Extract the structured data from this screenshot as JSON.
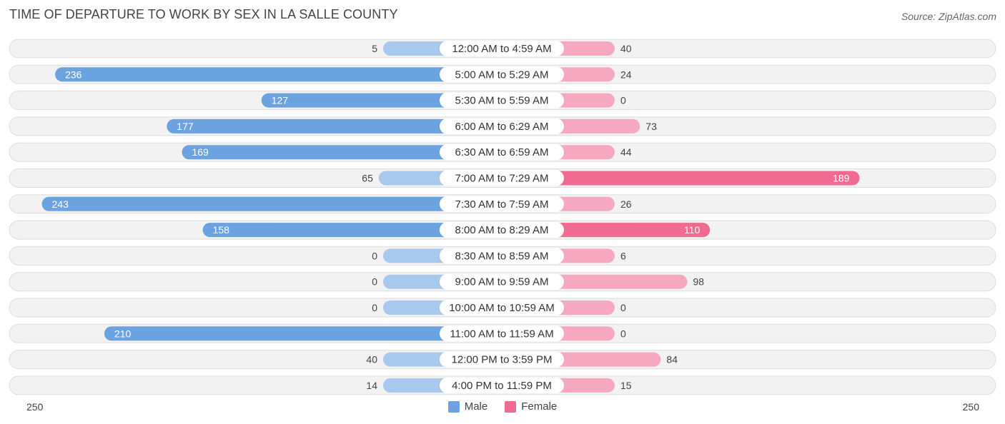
{
  "header": {
    "title": "TIME OF DEPARTURE TO WORK BY SEX IN LA SALLE COUNTY",
    "source": "Source: ZipAtlas.com"
  },
  "colors": {
    "male": "#6aa3df",
    "male_light": "#a9c9ec",
    "female": "#f06a92",
    "female_light": "#f6a8c1",
    "row_bg": "#f2f2f2",
    "row_border": "#dddddd"
  },
  "legend": {
    "male_label": "Male",
    "female_label": "Female"
  },
  "axis": {
    "left_label": "250",
    "right_label": "250"
  },
  "chart_data": {
    "type": "bar",
    "orientation": "horizontal-diverging",
    "title": "TIME OF DEPARTURE TO WORK BY SEX IN LA SALLE COUNTY",
    "xlim": [
      -250,
      250
    ],
    "categories": [
      "12:00 AM to 4:59 AM",
      "5:00 AM to 5:29 AM",
      "5:30 AM to 5:59 AM",
      "6:00 AM to 6:29 AM",
      "6:30 AM to 6:59 AM",
      "7:00 AM to 7:29 AM",
      "7:30 AM to 7:59 AM",
      "8:00 AM to 8:29 AM",
      "8:30 AM to 8:59 AM",
      "9:00 AM to 9:59 AM",
      "10:00 AM to 10:59 AM",
      "11:00 AM to 11:59 AM",
      "12:00 PM to 3:59 PM",
      "4:00 PM to 11:59 PM"
    ],
    "series": [
      {
        "name": "Male",
        "values": [
          5,
          236,
          127,
          177,
          169,
          65,
          243,
          158,
          0,
          0,
          0,
          210,
          40,
          14
        ]
      },
      {
        "name": "Female",
        "values": [
          40,
          24,
          0,
          73,
          44,
          189,
          26,
          110,
          6,
          98,
          0,
          0,
          84,
          15
        ]
      }
    ],
    "legend": [
      "Male",
      "Female"
    ]
  }
}
